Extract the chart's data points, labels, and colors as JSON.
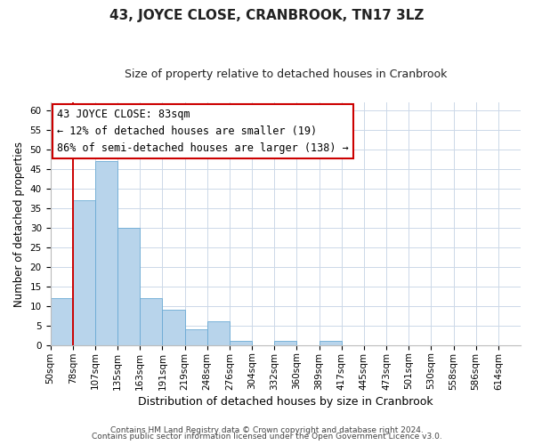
{
  "title": "43, JOYCE CLOSE, CRANBROOK, TN17 3LZ",
  "subtitle": "Size of property relative to detached houses in Cranbrook",
  "xlabel": "Distribution of detached houses by size in Cranbrook",
  "ylabel": "Number of detached properties",
  "bar_values": [
    12,
    37,
    47,
    30,
    12,
    9,
    4,
    6,
    1,
    0,
    1,
    0,
    1,
    0,
    0,
    0,
    0,
    0,
    0,
    0,
    0
  ],
  "bar_labels": [
    "50sqm",
    "78sqm",
    "107sqm",
    "135sqm",
    "163sqm",
    "191sqm",
    "219sqm",
    "248sqm",
    "276sqm",
    "304sqm",
    "332sqm",
    "360sqm",
    "389sqm",
    "417sqm",
    "445sqm",
    "473sqm",
    "501sqm",
    "530sqm",
    "558sqm",
    "586sqm",
    "614sqm"
  ],
  "bar_color": "#b8d4eb",
  "bar_edge_color": "#6aaad4",
  "bar_width": 1.0,
  "ylim": [
    0,
    62
  ],
  "yticks": [
    0,
    5,
    10,
    15,
    20,
    25,
    30,
    35,
    40,
    45,
    50,
    55,
    60
  ],
  "vline_x": 1,
  "vline_color": "#cc0000",
  "annotation_box_text": "43 JOYCE CLOSE: 83sqm\n← 12% of detached houses are smaller (19)\n86% of semi-detached houses are larger (138) →",
  "box_edge_color": "#cc0000",
  "background_color": "#ffffff",
  "grid_color": "#ccd8e8",
  "title_fontsize": 11,
  "subtitle_fontsize": 9,
  "xlabel_fontsize": 9,
  "ylabel_fontsize": 8.5,
  "tick_fontsize": 7.5,
  "annotation_fontsize": 8.5,
  "footer_line1": "Contains HM Land Registry data © Crown copyright and database right 2024.",
  "footer_line2": "Contains public sector information licensed under the Open Government Licence v3.0.",
  "footer_fontsize": 6.5
}
